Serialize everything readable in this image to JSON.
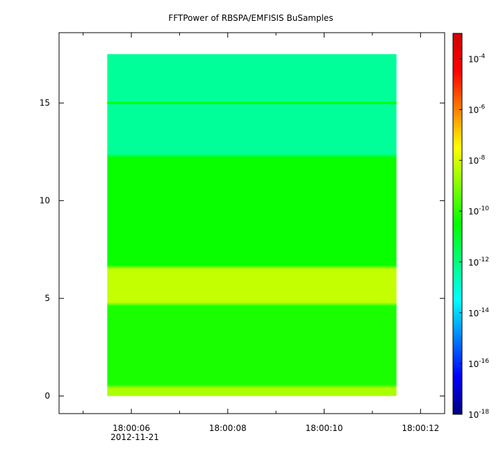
{
  "chart_data": {
    "type": "heatmap",
    "title": "FFTPower of RBSPA/EMFISIS  BuSamples",
    "xlabel": "",
    "ylabel": "",
    "x_ticks": [
      "18:00:06",
      "18:00:08",
      "18:00:10",
      "18:00:12"
    ],
    "x_tick_seconds": [
      6,
      8,
      10,
      12
    ],
    "x_minor_tick_seconds": [
      5,
      7,
      9,
      11
    ],
    "x_sublabel": "2012-11-21",
    "xlim_seconds": [
      4.5,
      12.5
    ],
    "data_xlim_seconds": [
      5.5,
      11.5
    ],
    "y_ticks": [
      "0",
      "5",
      "10",
      "15"
    ],
    "y_tick_values": [
      0,
      5,
      10,
      15
    ],
    "ylim": [
      -0.9,
      18.6
    ],
    "data_ylim": [
      0,
      17.5
    ],
    "colorbar": {
      "scale": "log",
      "range_exponent": [
        -18,
        -3
      ],
      "tick_exponents": [
        -4,
        -6,
        -8,
        -10,
        -12,
        -14,
        -16,
        -18
      ],
      "tick_base": "10",
      "colors": [
        "#00007f",
        "#0000ff",
        "#007fff",
        "#00ffff",
        "#00ff7f",
        "#00ff00",
        "#7fff00",
        "#ffff00",
        "#ff7f00",
        "#ff0000",
        "#d00000"
      ]
    },
    "bands": [
      {
        "y_from": 0,
        "y_to": 0.5,
        "log10_power": -8.5
      },
      {
        "y_from": 0.5,
        "y_to": 4.7,
        "log10_power": -10.2
      },
      {
        "y_from": 4.7,
        "y_to": 6.6,
        "log10_power": -8.2
      },
      {
        "y_from": 6.6,
        "y_to": 12.3,
        "log10_power": -10.4
      },
      {
        "y_from": 12.3,
        "y_to": 17.5,
        "log10_power": -12.3
      }
    ],
    "features": [
      {
        "y": 15.0,
        "log10_power": -10.5,
        "description": "narrow line"
      }
    ]
  }
}
